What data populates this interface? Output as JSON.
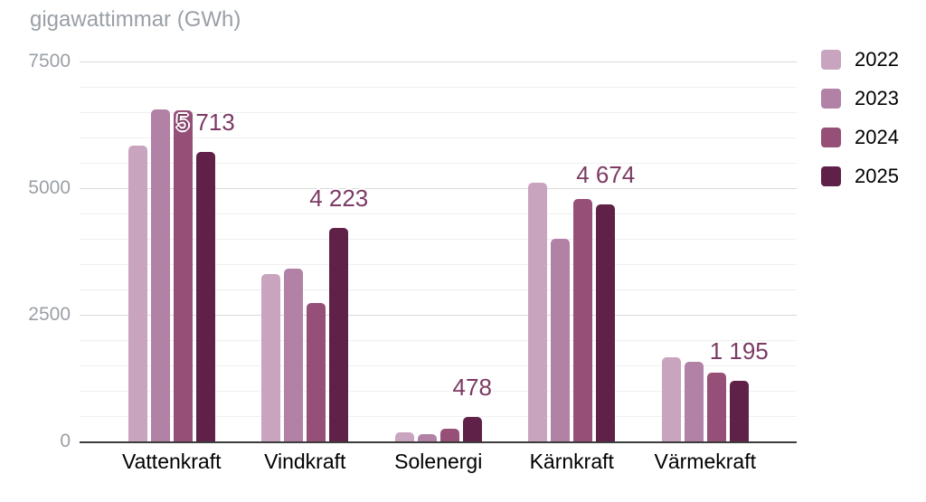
{
  "chart_data": {
    "type": "bar",
    "title": "gigawattimmar (GWh)",
    "categories": [
      "Vattenkraft",
      "Vindkraft",
      "Solenergi",
      "Kärnkraft",
      "Värmekraft"
    ],
    "series": [
      {
        "name": "2022",
        "color": "#c9a4be",
        "values": [
          5840,
          3310,
          185,
          5110,
          1660
        ]
      },
      {
        "name": "2023",
        "color": "#b181a6",
        "values": [
          6550,
          3410,
          150,
          4000,
          1570
        ]
      },
      {
        "name": "2024",
        "color": "#965078",
        "values": [
          6540,
          2730,
          250,
          4790,
          1360
        ]
      },
      {
        "name": "2025",
        "color": "#5f2148",
        "values": [
          5713,
          4223,
          478,
          4674,
          1195
        ]
      }
    ],
    "annotations": {
      "series": "2025",
      "labels": [
        "5 713",
        "4 223",
        "478",
        "4 674",
        "1 195"
      ]
    },
    "ylim": [
      0,
      7500
    ],
    "y_ticks": [
      "0",
      "2500",
      "5000",
      "7500"
    ],
    "y_minor_step": 500,
    "grid": true,
    "legend_position": "right",
    "xlabel": "",
    "ylabel": "gigawattimmar (GWh)"
  },
  "colors": {
    "background": "#ffffff",
    "title_text": "#9aa0a6",
    "tick_text": "#9aa0a6",
    "category_text": "#000000",
    "legend_text": "#000000",
    "annotation_text": "#7c3a64",
    "axis_line": "#3c3c3c",
    "gridline_major": "#d9d9d9",
    "gridline_minor": "#efefef"
  }
}
